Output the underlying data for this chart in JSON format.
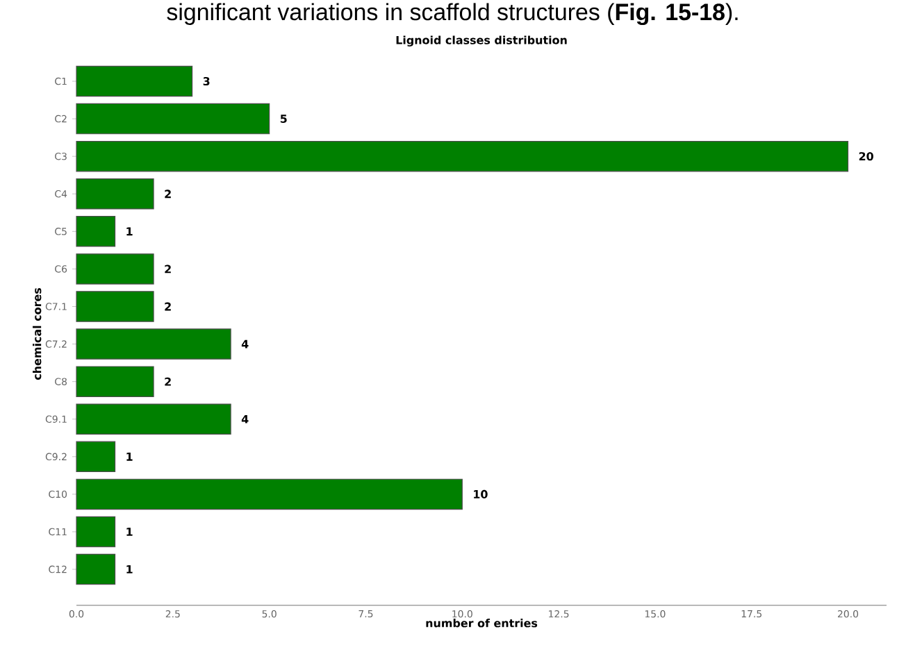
{
  "chart_data": {
    "type": "bar",
    "orientation": "horizontal",
    "title": "Lignoid classes distribution",
    "xlabel": "number of entries",
    "ylabel": "chemical cores",
    "annotations": [
      "significant variations in scaffold structures (**Fig. 15-18**)."
    ],
    "categories": [
      "C1",
      "C2",
      "C3",
      "C4",
      "C5",
      "C6",
      "C7.1",
      "C7.2",
      "C8",
      "C9.1",
      "C9.2",
      "C10",
      "C11",
      "C12"
    ],
    "values": [
      3,
      5,
      20,
      2,
      1,
      2,
      2,
      4,
      2,
      4,
      1,
      10,
      1,
      1
    ],
    "color": "#008000",
    "data_labels": true,
    "xlim": [
      0,
      21
    ],
    "xticks": [
      {
        "value": 0,
        "label": "0.0"
      },
      {
        "value": 2.5,
        "label": "2.5"
      },
      {
        "value": 5,
        "label": "5.0"
      },
      {
        "value": 7.5,
        "label": "7.5"
      },
      {
        "value": 10,
        "label": "10.0"
      },
      {
        "value": 12.5,
        "label": "12.5"
      },
      {
        "value": 15,
        "label": "15.0"
      },
      {
        "value": 17.5,
        "label": "17.5"
      },
      {
        "value": 20,
        "label": "20.0"
      }
    ]
  }
}
